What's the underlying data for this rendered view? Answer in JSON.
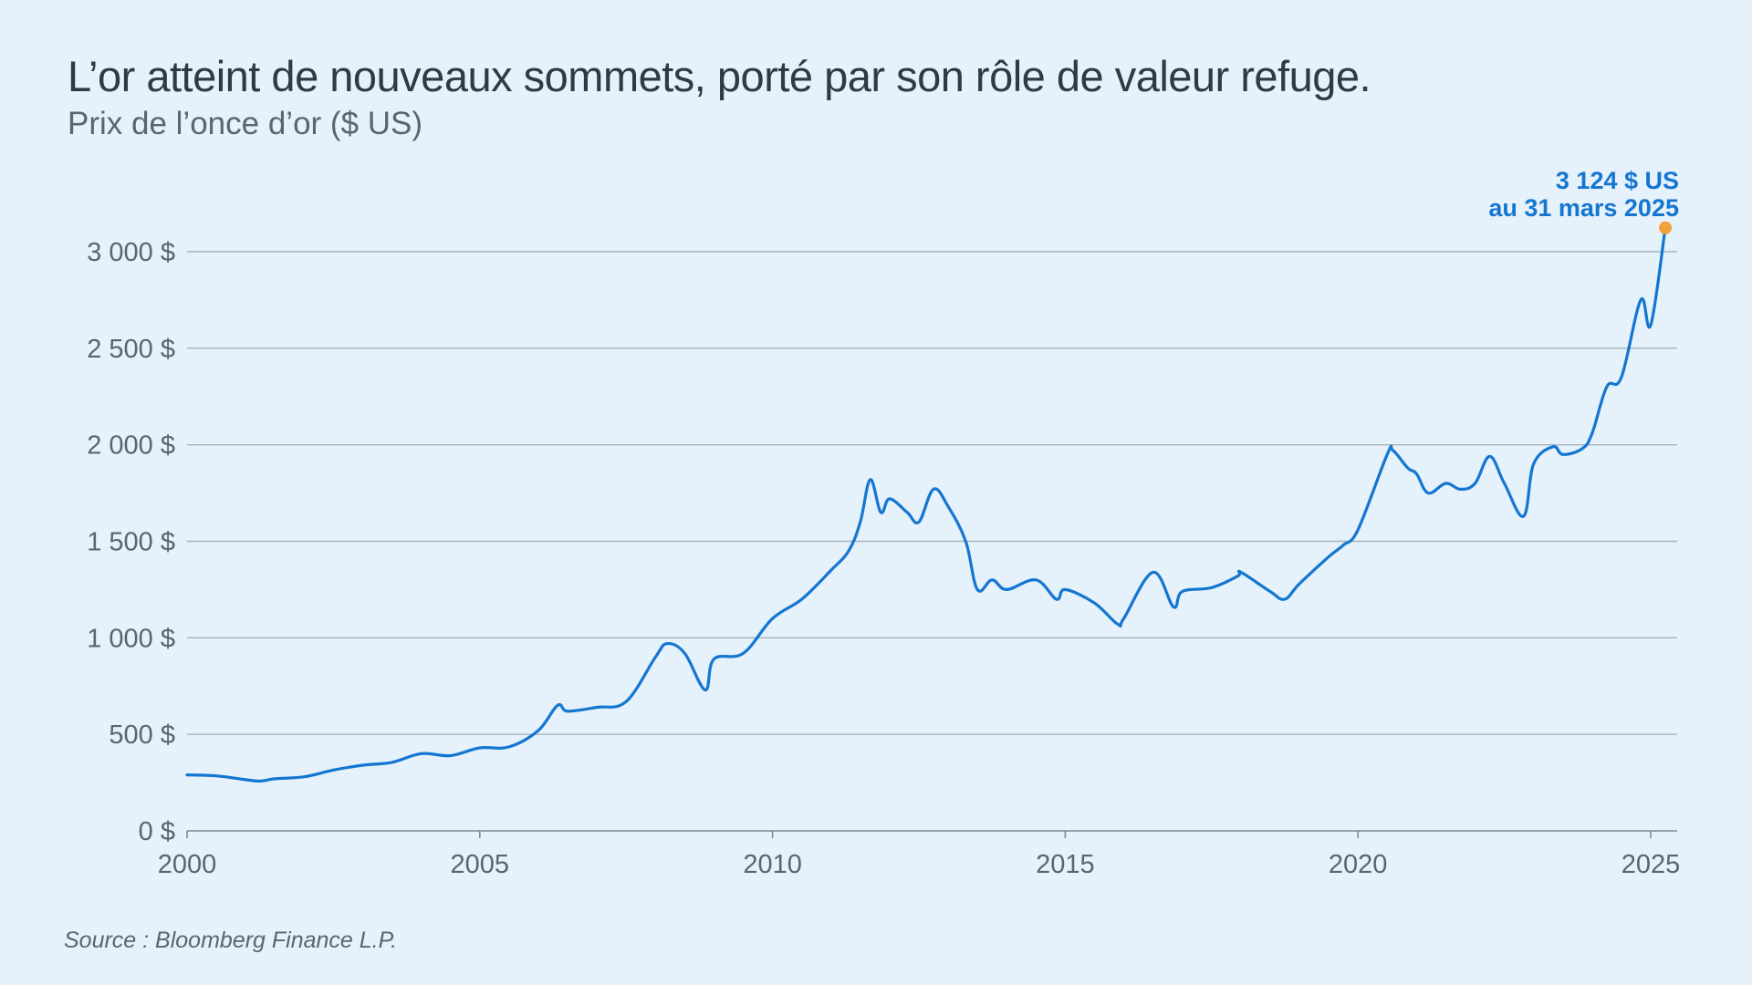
{
  "header": {
    "title": "L’or atteint de nouveaux sommets, porté par son rôle de valeur refuge.",
    "subtitle": "Prix de l’once d’or ($ US)"
  },
  "footer": {
    "source": "Source : Bloomberg Finance L.P."
  },
  "colors": {
    "background": "#e5f1fb",
    "line": "#1476d0",
    "marker": "#f0a23c",
    "grid": "#a9b3bb",
    "text": "#2f3a44",
    "muted_text": "#5a6571"
  },
  "chart_data": {
    "type": "line",
    "title": "L’or atteint de nouveaux sommets, porté par son rôle de valeur refuge.",
    "subtitle": "Prix de l’once d’or ($ US)",
    "xlabel": "",
    "ylabel": "",
    "xlim": [
      2000,
      2025.25
    ],
    "ylim": [
      0,
      3000
    ],
    "grid": true,
    "legend": "none",
    "y_ticks": [
      0,
      500,
      1000,
      1500,
      2000,
      2500,
      3000
    ],
    "y_tick_labels": [
      "0 $",
      "500 $",
      "1 000 $",
      "1 500 $",
      "2 000 $",
      "2 500 $",
      "3 000 $"
    ],
    "x_ticks": [
      2000,
      2005,
      2010,
      2015,
      2020,
      2025
    ],
    "x_tick_labels": [
      "2000",
      "2005",
      "2010",
      "2015",
      "2020",
      "2025"
    ],
    "series": [
      {
        "x": [
          2000.0,
          2000.5,
          2001.0,
          2001.25,
          2001.5,
          2002.0,
          2002.5,
          2003.0,
          2003.5,
          2004.0,
          2004.5,
          2005.0,
          2005.5,
          2006.0,
          2006.33,
          2006.5,
          2007.0,
          2007.5,
          2008.0,
          2008.2,
          2008.5,
          2008.85,
          2009.0,
          2009.5,
          2010.0,
          2010.5,
          2011.0,
          2011.3,
          2011.5,
          2011.67,
          2011.85,
          2012.0,
          2012.3,
          2012.5,
          2012.75,
          2013.0,
          2013.3,
          2013.5,
          2013.75,
          2014.0,
          2014.5,
          2014.85,
          2015.0,
          2015.5,
          2015.9,
          2016.0,
          2016.5,
          2016.85,
          2017.0,
          2017.5,
          2017.95,
          2018.0,
          2018.5,
          2018.75,
          2019.0,
          2019.5,
          2019.75,
          2020.0,
          2020.5,
          2020.6,
          2020.85,
          2021.0,
          2021.2,
          2021.5,
          2021.75,
          2022.0,
          2022.25,
          2022.5,
          2022.83,
          2023.0,
          2023.33,
          2023.5,
          2023.83,
          2024.0,
          2024.25,
          2024.5,
          2024.83,
          2025.0,
          2025.25
        ],
        "y": [
          290,
          285,
          265,
          258,
          270,
          280,
          315,
          340,
          355,
          400,
          390,
          430,
          435,
          520,
          650,
          620,
          640,
          670,
          900,
          970,
          920,
          730,
          890,
          920,
          1100,
          1200,
          1350,
          1450,
          1600,
          1820,
          1650,
          1720,
          1650,
          1600,
          1770,
          1680,
          1500,
          1250,
          1300,
          1250,
          1300,
          1200,
          1250,
          1180,
          1070,
          1100,
          1340,
          1160,
          1240,
          1260,
          1320,
          1340,
          1240,
          1200,
          1280,
          1420,
          1480,
          1560,
          1950,
          1970,
          1880,
          1850,
          1750,
          1800,
          1770,
          1800,
          1940,
          1800,
          1630,
          1900,
          1990,
          1950,
          1980,
          2060,
          2300,
          2350,
          2750,
          2620,
          3124
        ]
      }
    ],
    "annotation": {
      "value_label": "3 124 $ US",
      "date_label": "au 31 mars 2025",
      "x": 2025.25,
      "y": 3124
    }
  }
}
